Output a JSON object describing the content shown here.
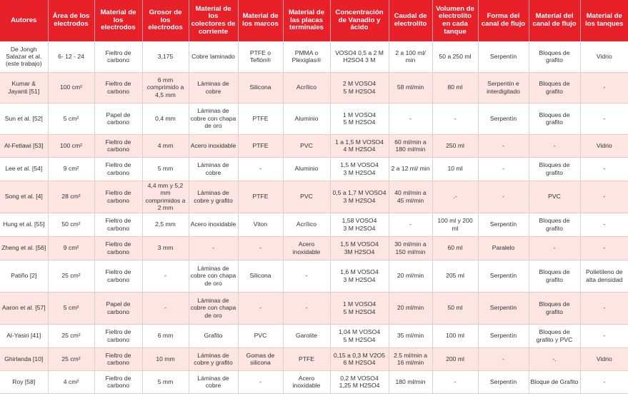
{
  "headers": [
    "Autores",
    "Área de los electrodos",
    "Material de los electrodos",
    "Grosor de los electrodos",
    "Material de los colectores de corriente",
    "Material de los marcos",
    "Material de las placas terminales",
    "Concentración de Vanadio y ácido",
    "Caudal de electrolito",
    "Volumen de electrolito en cada tanque",
    "Forma del canal de flujo",
    "Material del canal de flujo",
    "Material de los tanques"
  ],
  "rows": [
    [
      "De Jongh Salazar et al. (este trabajo)",
      "6- 12 - 24",
      "Fieltro de carbono",
      "3,175",
      "Cobre laminado",
      "PTFE o Teflón®",
      "PMMA o Plexiglas®",
      "VOSO4 0,5 a 2 M H2SO4 3 M",
      "2 a 100 ml/ min",
      "50 a 250 ml",
      "Serpentín",
      "Bloques de grafito",
      "Vidrio"
    ],
    [
      "Kumar & Jayanti [51]",
      "100 cm²",
      "Fieltro de carbono",
      "6 mm comprimido a 4,5 mm",
      "Láminas de cobre",
      "Silicona",
      "Acrílico",
      "2 M VOSO4\n5 M H2SO4",
      "58 ml/min",
      "80 ml",
      "Serpentín e interdigitado",
      "Bloques de grafito",
      "-"
    ],
    [
      "Sun et al. [52]",
      "5 cm²",
      "Papel de carbono",
      "0,4 mm",
      "Láminas de cobre con chapa de oro",
      "PTFE",
      "Aluminio",
      "1 M VOSO4\n5 M H2SO4",
      "-",
      "-",
      "Serpentín",
      "Bloques de grafito",
      "-"
    ],
    [
      "Al-Fetlawi [53]",
      "100 cm²",
      "Fieltro de carbono",
      "4 mm",
      "Acero inoxidable",
      "PTFE",
      "PVC",
      "1 a 1,5 M VOSO4\n4 M H2SO4",
      "60 ml/min a 180 ml/min",
      "250 ml",
      "-",
      "-",
      "Vidrio"
    ],
    [
      "Lee et al. [54]",
      "9 cm²",
      "Fieltro de carbono",
      "5 mm",
      "Láminas de cobre",
      "-",
      "Aluminio",
      "1,5 M VOSO4\n3 M H2SO4",
      "2 a 12 ml/ min",
      "10 ml",
      "-",
      "Bloques de grafito",
      "-"
    ],
    [
      "Song et al. [4]",
      "28 cm²",
      "Fieltro de carbono",
      "4,4 mm y 5,2 mm comprimidos a 2 mm",
      "Láminas de cobre y grafito",
      "PTFE",
      "PVC",
      "0,5 a 1,7 M VOSO4\n3 M  H2SO4",
      "40 ml/min a 45 ml/min",
      ".-",
      "-",
      "PVC",
      "-"
    ],
    [
      "Hung et al. [55]",
      "50 cm²",
      "Fieltro de carbono",
      "2,5 mm",
      "Acero inoxidable",
      "Viton",
      "Acrílico",
      "1,58 VOSO4\n3 M  H2SO4",
      "-",
      "100 ml y 200 ml",
      "Serpentín",
      "Bloques de grafito",
      "-"
    ],
    [
      "Zheng et al. [56]",
      "9 cm²",
      "Fieltro de carbono",
      "3 mm",
      "-",
      "-",
      "Acero inoxidable",
      "1,5 M VOSO4\n3M H2SO4",
      "30 ml/min a 150 ml/min",
      "60 ml",
      "Paralelo",
      "-",
      "-"
    ],
    [
      "Patiño [2]",
      "25 cm²",
      "Fieltro de carbono",
      "-",
      "Láminas de cobre con chapa de oro",
      "Silicona",
      "-",
      "1,6 M VOSO4\n3 M H2SO4",
      "20 ml/min",
      "205 ml",
      "Serpentín",
      "Bloques de grafito",
      "Polietileno de alta densidad"
    ],
    [
      "Aaron et al. [57]",
      "5 cm²",
      "Papel de carbono",
      "-",
      "Láminas de cobre con chapa de oro",
      "-",
      "-",
      "1 M VOSO4\n5 M H2SO4",
      "20 ml/min",
      "50 ml",
      "Serpentín",
      "Bloques de grafito",
      "-"
    ],
    [
      "Al-Yasiri [41]",
      "25 cm²",
      "Fieltro de carbono",
      "6 mm",
      "Grafito",
      "PVC",
      "Garolite",
      "1,04 M VOSO4\n5 M H2SO4",
      "35 ml/min",
      "100 ml",
      "Serpentín",
      "Bloques de grafito y PVC",
      "-"
    ],
    [
      "Ghirlanda [10]",
      "25 cm²",
      "Fieltro de carbono",
      "10 mm",
      "Láminas de cobre y grafito",
      "Gomas de silicona",
      "PTFE",
      "0,15 a 0,3 M V2O5\n6 M H2SO4",
      "2.5 ml/min a 16 ml/min",
      "200 ml",
      "-",
      "-.",
      "Vidrio"
    ],
    [
      "Roy [58]",
      "4 cm²",
      "Fieltro de carbono",
      "5 mm",
      "Láminas de cobre",
      "-",
      "Acero inoxidable",
      "0,2 M VOSO4\n1,25 M H2SO4",
      "180 ml/min",
      "-",
      "Serpentín",
      "Bloque de Grafito",
      "-"
    ]
  ],
  "colors": {
    "header_bg": "#e8202a",
    "header_text": "#ffffff",
    "row_alt_bg": "#fde5e1",
    "row_bg": "#ffffff",
    "text": "#333333"
  }
}
